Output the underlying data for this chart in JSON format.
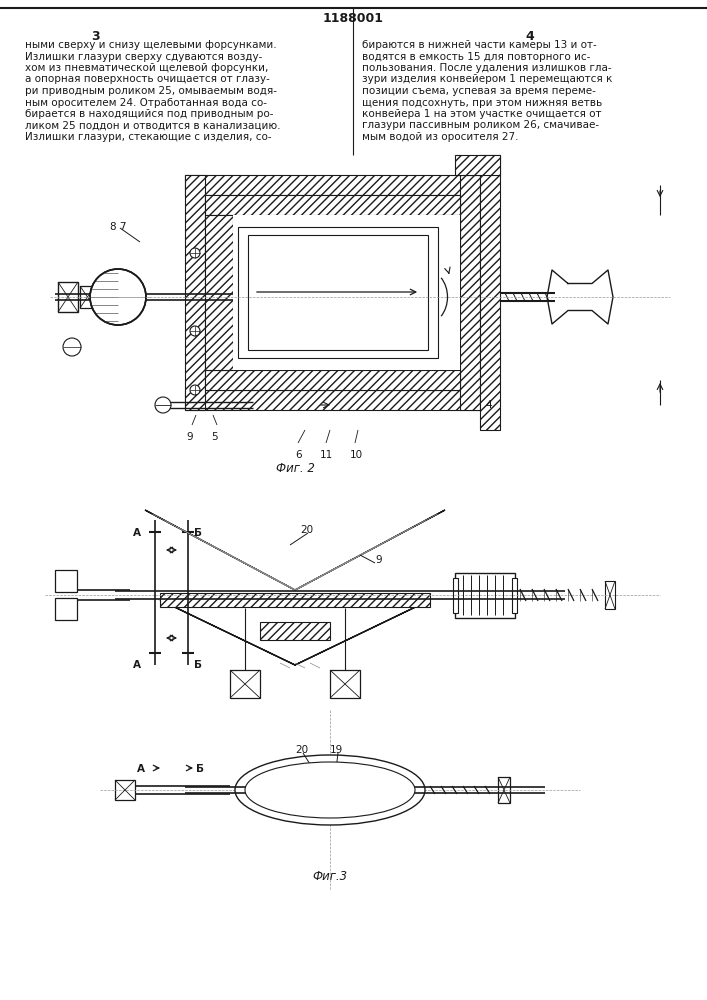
{
  "page_width": 7.07,
  "page_height": 10.0,
  "dpi": 100,
  "bg_color": "#ffffff",
  "line_color": "#1a1a1a",
  "patent_number": "1188001",
  "col_left_number": "3",
  "col_right_number": "4",
  "col_left_text": [
    "ными сверху и снизу щелевыми форсунками.",
    "Излишки глазури сверху сдуваются возду-",
    "хом из пневматической щелевой форсунки,",
    "а опорная поверхность очищается от глазу-",
    "ри приводным роликом 25, омываемым водя-",
    "ным оросителем 24. Отработанная вода со-",
    "бирается в находящийся под приводным ро-",
    "ликом 25 поддон и отводится в канализацию.",
    "Излишки глазури, стекающие с изделия, со-"
  ],
  "col_right_text": [
    "бираются в нижней части камеры 13 и от-",
    "водятся в емкость 15 для повторного ис-",
    "пользования. После удаления излишков гла-",
    "зури изделия конвейером 1 перемещаются к",
    "позиции съема, успевая за время переме-",
    "щения подсохнуть, при этом нижняя ветвь",
    "конвейера 1 на этом участке очищается от",
    "глазури пассивным роликом 26, смачивае-",
    "мым водой из оросителя 27."
  ],
  "fig2_label": "Фиг. 2",
  "fig3_label": "Фиг.3"
}
